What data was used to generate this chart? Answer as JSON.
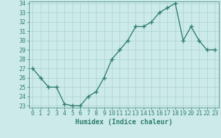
{
  "x": [
    0,
    1,
    2,
    3,
    4,
    5,
    6,
    7,
    8,
    9,
    10,
    11,
    12,
    13,
    14,
    15,
    16,
    17,
    18,
    19,
    20,
    21,
    22,
    23
  ],
  "y": [
    27,
    26,
    25,
    25,
    23.2,
    23,
    23,
    24,
    24.5,
    26,
    28,
    29,
    30,
    31.5,
    31.5,
    32,
    33,
    33.5,
    34,
    30,
    31.5,
    30,
    29,
    29
  ],
  "line_color": "#2e7d6e",
  "marker": "+",
  "marker_size": 4,
  "bg_color": "#cceaea",
  "grid_color": "#aacfcf",
  "xlabel": "Humidex (Indice chaleur)",
  "ylim": [
    23,
    34
  ],
  "xlim": [
    -0.5,
    23.5
  ],
  "yticks": [
    23,
    24,
    25,
    26,
    27,
    28,
    29,
    30,
    31,
    32,
    33,
    34
  ],
  "xticks": [
    0,
    1,
    2,
    3,
    4,
    5,
    6,
    7,
    8,
    9,
    10,
    11,
    12,
    13,
    14,
    15,
    16,
    17,
    18,
    19,
    20,
    21,
    22,
    23
  ],
  "tick_color": "#2e7d6e",
  "label_color": "#2e7d6e",
  "xlabel_fontsize": 7,
  "tick_fontsize": 6,
  "linewidth": 1.0,
  "marker_edge_width": 1.0
}
